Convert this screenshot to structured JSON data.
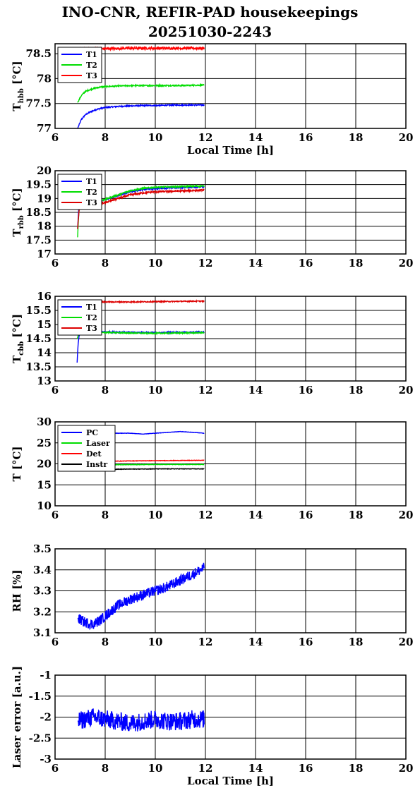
{
  "header": {
    "title_line1": "INO-CNR, REFIR-PAD housekeepings",
    "title_line2": "20251030-2243"
  },
  "chart_data": [
    {
      "type": "line",
      "name": "thbb",
      "ylabel_main": "T",
      "ylabel_sub": "hbb",
      "ylabel_unit": "[°C]",
      "xlabel": "Local Time [h]",
      "xlim": [
        6,
        20
      ],
      "xticks": [
        6,
        8,
        10,
        12,
        14,
        16,
        18,
        20
      ],
      "ylim": [
        77,
        78.7
      ],
      "yticks": [
        77,
        77.5,
        78,
        78.5
      ],
      "ytick_labels": [
        "77",
        "77.5",
        "78",
        "78.5"
      ],
      "grid": true,
      "legend_position": "top-left",
      "series": [
        {
          "name": "T1",
          "color": "#0000ff",
          "x": [
            6.9,
            7.05,
            7.2,
            7.4,
            7.6,
            7.8,
            8.0,
            8.5,
            9.0,
            9.5,
            10.0,
            11.0,
            11.95
          ],
          "y": [
            77.0,
            77.18,
            77.27,
            77.33,
            77.37,
            77.4,
            77.42,
            77.44,
            77.45,
            77.46,
            77.46,
            77.47,
            77.47
          ],
          "noise": 0.012
        },
        {
          "name": "T2",
          "color": "#00dd00",
          "x": [
            6.9,
            7.05,
            7.2,
            7.4,
            7.6,
            7.8,
            8.0,
            8.5,
            9.0,
            10.0,
            11.0,
            11.95
          ],
          "y": [
            77.52,
            77.66,
            77.74,
            77.78,
            77.81,
            77.83,
            77.84,
            77.85,
            77.86,
            77.86,
            77.86,
            77.87
          ],
          "noise": 0.012
        },
        {
          "name": "T3",
          "color": "#ff0000",
          "x": [
            6.9,
            7.2,
            7.6,
            8.0,
            9.0,
            10.0,
            11.95
          ],
          "y": [
            78.6,
            78.6,
            78.6,
            78.6,
            78.61,
            78.61,
            78.61
          ],
          "noise": 0.025
        }
      ]
    },
    {
      "type": "line",
      "name": "trbb",
      "ylabel_main": "T",
      "ylabel_sub": "rbb",
      "ylabel_unit": "[°C]",
      "xlabel": "",
      "xlim": [
        6,
        20
      ],
      "xticks": [
        6,
        8,
        10,
        12,
        14,
        16,
        18,
        20
      ],
      "ylim": [
        17,
        20
      ],
      "yticks": [
        17,
        17.5,
        18,
        18.5,
        19,
        19.5,
        20
      ],
      "ytick_labels": [
        "17",
        "17.5",
        "18",
        "18.5",
        "19",
        "19.5",
        "20"
      ],
      "grid": true,
      "legend_position": "top-left",
      "series": [
        {
          "name": "T1",
          "color": "#0000ff",
          "x": [
            6.9,
            6.95,
            7.0,
            7.3,
            7.7,
            8.0,
            8.5,
            9.0,
            9.5,
            10.0,
            11.0,
            11.95
          ],
          "y": [
            17.9,
            18.75,
            18.8,
            18.85,
            18.9,
            18.95,
            19.1,
            19.25,
            19.32,
            19.36,
            19.4,
            19.42
          ],
          "noise": 0.025
        },
        {
          "name": "T2",
          "color": "#00dd00",
          "x": [
            6.9,
            6.93,
            6.97,
            7.0,
            7.3,
            7.7,
            8.0,
            8.5,
            9.0,
            9.5,
            10.0,
            11.0,
            11.95
          ],
          "y": [
            17.6,
            18.2,
            18.7,
            18.8,
            18.85,
            18.9,
            18.97,
            19.12,
            19.28,
            19.36,
            19.4,
            19.43,
            19.45
          ],
          "noise": 0.025
        },
        {
          "name": "T3",
          "color": "#dd0000",
          "x": [
            6.9,
            6.93,
            6.97,
            7.0,
            7.3,
            7.7,
            8.0,
            8.5,
            9.0,
            9.5,
            10.0,
            11.0,
            11.95
          ],
          "y": [
            17.9,
            18.3,
            18.65,
            18.72,
            18.77,
            18.8,
            18.85,
            19.0,
            19.13,
            19.2,
            19.24,
            19.27,
            19.3
          ],
          "noise": 0.03
        }
      ]
    },
    {
      "type": "line",
      "name": "tcbb",
      "ylabel_main": "T",
      "ylabel_sub": "cbb",
      "ylabel_unit": "[°C]",
      "xlabel": "",
      "xlim": [
        6,
        20
      ],
      "xticks": [
        6,
        8,
        10,
        12,
        14,
        16,
        18,
        20
      ],
      "ylim": [
        13,
        16
      ],
      "yticks": [
        13,
        13.5,
        14,
        14.5,
        15,
        15.5,
        16
      ],
      "ytick_labels": [
        "13",
        "13.5",
        "14",
        "14.5",
        "15",
        "15.5",
        "16"
      ],
      "grid": true,
      "legend_position": "top-left",
      "series": [
        {
          "name": "T1",
          "color": "#0000ff",
          "x": [
            6.88,
            6.9,
            6.93,
            6.96,
            7.0,
            7.5,
            8.0,
            9.0,
            10.0,
            11.0,
            11.95
          ],
          "y": [
            13.65,
            14.0,
            14.4,
            14.6,
            14.72,
            14.74,
            14.74,
            14.72,
            14.71,
            14.72,
            14.73
          ],
          "noise": 0.02
        },
        {
          "name": "T2",
          "color": "#00dd00",
          "x": [
            6.88,
            6.92,
            6.97,
            7.0,
            7.5,
            8.0,
            9.0,
            10.0,
            11.0,
            11.95
          ],
          "y": [
            14.5,
            14.6,
            14.68,
            14.72,
            14.73,
            14.72,
            14.7,
            14.69,
            14.7,
            14.71
          ],
          "noise": 0.02
        },
        {
          "name": "T3",
          "color": "#dd0000",
          "x": [
            6.9,
            7.0,
            7.5,
            8.0,
            9.0,
            10.0,
            11.0,
            11.95
          ],
          "y": [
            15.78,
            15.79,
            15.79,
            15.8,
            15.8,
            15.81,
            15.82,
            15.83
          ],
          "noise": 0.018
        }
      ]
    },
    {
      "type": "line",
      "name": "temps",
      "ylabel_main": "T [°C]",
      "ylabel_sub": "",
      "ylabel_unit": "",
      "xlabel": "",
      "xlim": [
        6,
        20
      ],
      "xticks": [
        6,
        8,
        10,
        12,
        14,
        16,
        18,
        20
      ],
      "ylim": [
        10,
        30
      ],
      "yticks": [
        10,
        15,
        20,
        25,
        30
      ],
      "ytick_labels": [
        "10",
        "15",
        "20",
        "25",
        "30"
      ],
      "grid": true,
      "legend_position": "top-left",
      "series": [
        {
          "name": "PC",
          "color": "#0000ff",
          "x": [
            6.9,
            8.0,
            9.0,
            9.5,
            10.0,
            10.5,
            11.0,
            11.5,
            11.95
          ],
          "y": [
            27.3,
            27.3,
            27.3,
            27.1,
            27.3,
            27.5,
            27.7,
            27.5,
            27.3
          ],
          "noise": 0.04
        },
        {
          "name": "Laser",
          "color": "#00dd00",
          "x": [
            6.9,
            8.0,
            9.0,
            10.0,
            11.0,
            11.95
          ],
          "y": [
            19.8,
            19.8,
            19.8,
            19.85,
            19.85,
            19.85
          ],
          "noise": 0.05
        },
        {
          "name": "Det",
          "color": "#ff0000",
          "x": [
            6.9,
            8.0,
            9.0,
            10.0,
            11.0,
            11.95
          ],
          "y": [
            20.5,
            20.6,
            20.7,
            20.75,
            20.8,
            20.85
          ],
          "noise": 0.05
        },
        {
          "name": "Instr",
          "color": "#000000",
          "x": [
            6.9,
            8.0,
            9.0,
            10.0,
            11.0,
            11.95
          ],
          "y": [
            18.6,
            18.7,
            18.75,
            18.8,
            18.8,
            18.8
          ],
          "noise": 0.06
        }
      ]
    },
    {
      "type": "line",
      "name": "rh",
      "ylabel_main": "RH [%]",
      "ylabel_sub": "",
      "ylabel_unit": "",
      "xlabel": "",
      "xlim": [
        6,
        20
      ],
      "xticks": [
        6,
        8,
        10,
        12,
        14,
        16,
        18,
        20
      ],
      "ylim": [
        3.1,
        3.5
      ],
      "yticks": [
        3.1,
        3.2,
        3.3,
        3.4,
        3.5
      ],
      "ytick_labels": [
        "3.1",
        "3.2",
        "3.3",
        "3.4",
        "3.5"
      ],
      "grid": true,
      "legend_position": "",
      "series": [
        {
          "name": "",
          "color": "#0000ff",
          "x": [
            6.9,
            7.2,
            7.5,
            7.8,
            8.0,
            8.5,
            9.0,
            9.5,
            10.0,
            10.5,
            11.0,
            11.5,
            11.95
          ],
          "y": [
            3.17,
            3.15,
            3.14,
            3.16,
            3.18,
            3.23,
            3.26,
            3.28,
            3.3,
            3.32,
            3.35,
            3.38,
            3.41
          ],
          "noise": 0.025
        }
      ]
    },
    {
      "type": "line",
      "name": "laser",
      "ylabel_main": "Laser error [a.u.]",
      "ylabel_sub": "",
      "ylabel_unit": "",
      "xlabel": "Local Time [h]",
      "xlim": [
        6,
        20
      ],
      "xticks": [
        6,
        8,
        10,
        12,
        14,
        16,
        18,
        20
      ],
      "ylim": [
        -3,
        -1
      ],
      "yticks": [
        -3,
        -2.5,
        -2,
        -1.5,
        -1
      ],
      "ytick_labels": [
        "-3",
        "-2.5",
        "-2",
        "-1.5",
        "-1"
      ],
      "grid": true,
      "legend_position": "",
      "series": [
        {
          "name": "",
          "color": "#0000ff",
          "x": [
            6.9,
            7.5,
            8.0,
            8.5,
            9.0,
            9.5,
            10.0,
            10.5,
            11.0,
            11.5,
            11.95
          ],
          "y": [
            -2.1,
            -2.0,
            -2.05,
            -2.1,
            -2.15,
            -2.1,
            -2.05,
            -2.1,
            -2.1,
            -2.05,
            -2.05
          ],
          "noise": 0.22
        }
      ]
    }
  ]
}
